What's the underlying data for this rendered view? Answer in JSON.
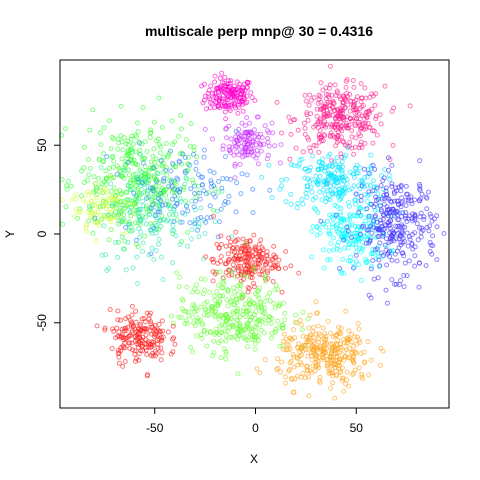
{
  "chart_data": {
    "type": "scatter",
    "title": "multiscale perp mnp@ 30 = 0.4316",
    "xlabel": "X",
    "ylabel": "Y",
    "xlim": [
      -97,
      96
    ],
    "ylim": [
      -98,
      98
    ],
    "xticks": [
      -50,
      0,
      50
    ],
    "yticks": [
      -50,
      0,
      50
    ],
    "legend": "none",
    "grid": false,
    "marker": "open-circle",
    "clusters": [
      {
        "color": "#ff00cc",
        "cx": -13,
        "cy": 78,
        "sx": 6,
        "sy": 5,
        "n": 160
      },
      {
        "color": "#cc33ff",
        "cx": -4,
        "cy": 52,
        "sx": 6,
        "sy": 6,
        "n": 120
      },
      {
        "color": "#ff1f8f",
        "cx": 42,
        "cy": 65,
        "sx": 11,
        "sy": 9,
        "n": 300
      },
      {
        "color": "#00e5ff",
        "cx": 38,
        "cy": 30,
        "sx": 12,
        "sy": 8,
        "n": 200
      },
      {
        "color": "#00ffff",
        "cx": 48,
        "cy": 0,
        "sx": 9,
        "sy": 10,
        "n": 200
      },
      {
        "color": "#4433ff",
        "cx": 70,
        "cy": 5,
        "sx": 10,
        "sy": 14,
        "n": 300
      },
      {
        "color": "#33ff33",
        "cx": -60,
        "cy": 30,
        "sx": 14,
        "sy": 16,
        "n": 380
      },
      {
        "color": "#ccff33",
        "cx": -75,
        "cy": 15,
        "sx": 8,
        "sy": 8,
        "n": 90
      },
      {
        "color": "#2ee6b8",
        "cx": -50,
        "cy": 10,
        "sx": 14,
        "sy": 14,
        "n": 150
      },
      {
        "color": "#2f7fff",
        "cx": -35,
        "cy": 25,
        "sx": 16,
        "sy": 12,
        "n": 120
      },
      {
        "color": "#ff2222",
        "cx": -5,
        "cy": -15,
        "sx": 8,
        "sy": 7,
        "n": 200
      },
      {
        "color": "#66ff33",
        "cx": -10,
        "cy": -45,
        "sx": 14,
        "sy": 11,
        "n": 320
      },
      {
        "color": "#ff1a1a",
        "cx": -58,
        "cy": -58,
        "sx": 7,
        "sy": 7,
        "n": 180
      },
      {
        "color": "#ffa31a",
        "cx": 35,
        "cy": -68,
        "sx": 12,
        "sy": 9,
        "n": 300
      }
    ]
  }
}
